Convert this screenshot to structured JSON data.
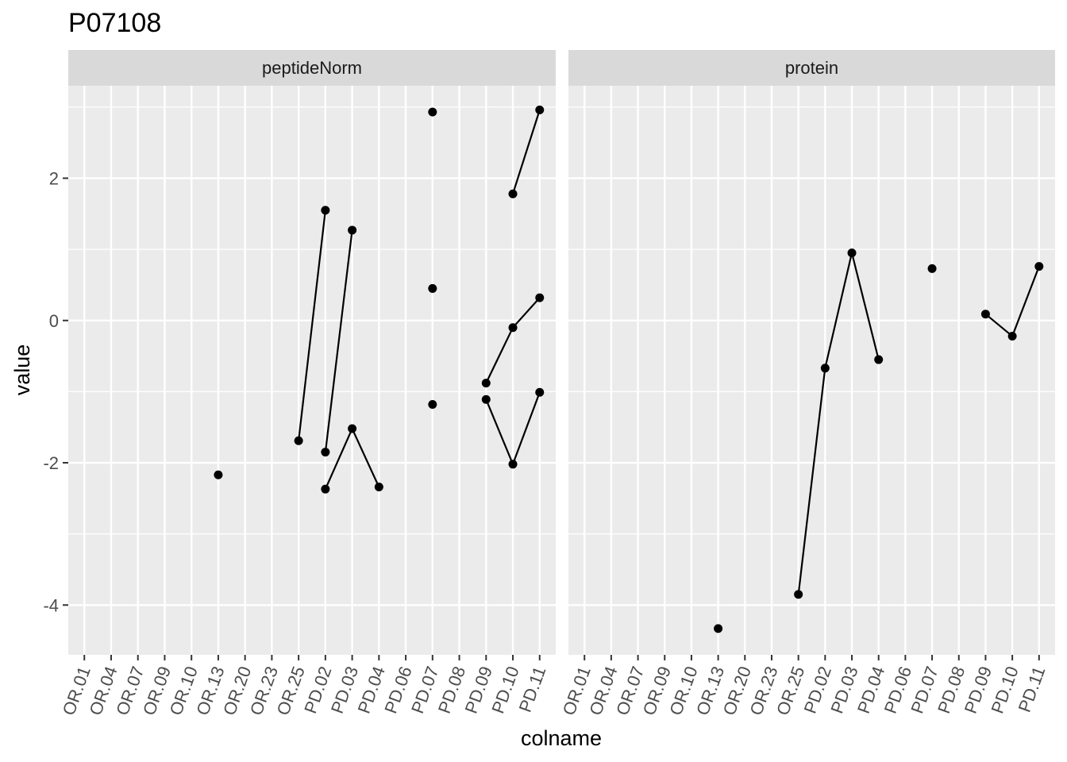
{
  "chart_data": {
    "type": "line",
    "title": "P07108",
    "xlabel": "colname",
    "ylabel": "value",
    "ylim": [
      -4.7,
      3.3
    ],
    "y_ticks": [
      2,
      0,
      -2,
      -4
    ],
    "y_tick_labels": [
      "2",
      "0",
      "-2",
      "-4"
    ],
    "categories": [
      "OR.01",
      "OR.04",
      "OR.07",
      "OR.09",
      "OR.10",
      "OR.13",
      "OR.20",
      "OR.23",
      "OR.25",
      "PD.02",
      "PD.03",
      "PD.04",
      "PD.06",
      "PD.07",
      "PD.08",
      "PD.09",
      "PD.10",
      "PD.11"
    ],
    "grid": true,
    "legend": "none",
    "colors": {
      "panel": "#ebebeb",
      "strip": "#d9d9d9",
      "grid": "#ffffff",
      "marks": "#000000"
    },
    "facets": [
      {
        "name": "peptideNorm",
        "series": [
          {
            "x": [
              "OR.25",
              "PD.02"
            ],
            "y": [
              -1.69,
              1.55
            ]
          },
          {
            "x": [
              "PD.02",
              "PD.03"
            ],
            "y": [
              -1.85,
              1.27
            ]
          },
          {
            "x": [
              "PD.02",
              "PD.03",
              "PD.04"
            ],
            "y": [
              -2.37,
              -1.52,
              -2.34
            ]
          },
          {
            "x": [
              "PD.09",
              "PD.10",
              "PD.11"
            ],
            "y": [
              -0.88,
              -0.1,
              0.32
            ]
          },
          {
            "x": [
              "PD.09",
              "PD.10",
              "PD.11"
            ],
            "y": [
              -1.11,
              -2.02,
              -1.01
            ]
          },
          {
            "x": [
              "PD.10",
              "PD.11"
            ],
            "y": [
              1.78,
              2.96
            ]
          }
        ],
        "points": [
          {
            "x": "OR.13",
            "y": -2.17
          },
          {
            "x": "PD.07",
            "y": 2.93
          },
          {
            "x": "PD.07",
            "y": 0.45
          },
          {
            "x": "PD.07",
            "y": -1.18
          }
        ]
      },
      {
        "name": "protein",
        "series": [
          {
            "x": [
              "OR.25",
              "PD.02",
              "PD.03",
              "PD.04"
            ],
            "y": [
              -3.85,
              -0.67,
              0.95,
              -0.55
            ]
          },
          {
            "x": [
              "PD.09",
              "PD.10",
              "PD.11"
            ],
            "y": [
              0.09,
              -0.22,
              0.76
            ]
          }
        ],
        "points": [
          {
            "x": "OR.13",
            "y": -4.33
          },
          {
            "x": "PD.07",
            "y": 0.73
          }
        ]
      }
    ]
  }
}
